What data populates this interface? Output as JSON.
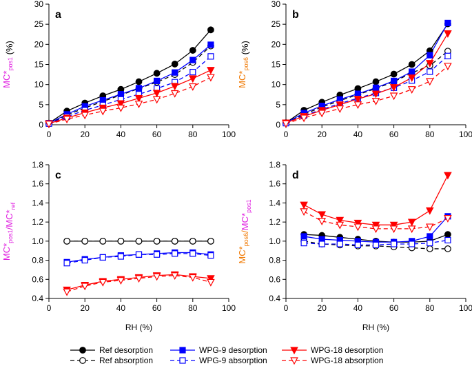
{
  "chart_data": [
    {
      "type": "line",
      "panel": "a",
      "ylabel": {
        "parts": [
          {
            "text": "MC*",
            "sub": "pos1",
            "color": "#e020e0"
          }
        ],
        "suffix": " (%)"
      },
      "xlabel": "",
      "xlim": [
        0,
        100
      ],
      "ylim": [
        0,
        30
      ],
      "xticks": [
        "0",
        "20",
        "40",
        "60",
        "80",
        "100"
      ],
      "yticks": [
        "0",
        "5",
        "10",
        "15",
        "20",
        "25",
        "30"
      ],
      "x": [
        0,
        10,
        20,
        30,
        40,
        50,
        60,
        70,
        80,
        90
      ],
      "series": [
        {
          "name": "Ref desorption",
          "values": [
            0.4,
            3.4,
            5.4,
            7.2,
            8.8,
            10.7,
            12.8,
            15.1,
            18.5,
            23.6
          ]
        },
        {
          "name": "Ref absorption",
          "values": [
            0.3,
            2.4,
            4.2,
            5.8,
            7.4,
            9.0,
            10.6,
            12.5,
            15.5,
            19.6
          ]
        },
        {
          "name": "WPG-9 desorption",
          "values": [
            0.4,
            2.6,
            4.6,
            6.1,
            7.6,
            9.1,
            10.9,
            13.0,
            16.1,
            19.9
          ]
        },
        {
          "name": "WPG-9 absorption",
          "values": [
            0.3,
            2.0,
            3.6,
            4.9,
            6.3,
            7.6,
            9.0,
            10.6,
            13.1,
            17.0
          ]
        },
        {
          "name": "WPG-18 desorption",
          "values": [
            0.3,
            1.7,
            3.0,
            4.2,
            5.3,
            6.6,
            7.9,
            9.6,
            11.5,
            13.6
          ]
        },
        {
          "name": "WPG-18 absorption",
          "values": [
            0.2,
            1.4,
            2.4,
            3.4,
            4.2,
            5.2,
            6.3,
            7.8,
            9.5,
            11.8
          ]
        }
      ]
    },
    {
      "type": "line",
      "panel": "b",
      "ylabel": {
        "parts": [
          {
            "text": "MC*",
            "sub": "pos6",
            "color": "#f07800"
          }
        ],
        "suffix": " (%)"
      },
      "xlabel": "",
      "xlim": [
        0,
        100
      ],
      "ylim": [
        0,
        30
      ],
      "xticks": [
        "0",
        "20",
        "40",
        "60",
        "80",
        "100"
      ],
      "yticks": [
        "0",
        "5",
        "10",
        "15",
        "20",
        "25",
        "30"
      ],
      "x": [
        0,
        10,
        20,
        30,
        40,
        50,
        60,
        70,
        80,
        90
      ],
      "series": [
        {
          "name": "Ref desorption",
          "values": [
            0.5,
            3.6,
            5.6,
            7.4,
            9.0,
            10.7,
            12.6,
            15.0,
            18.4,
            25.1
          ]
        },
        {
          "name": "Ref absorption",
          "values": [
            0.4,
            2.6,
            4.4,
            6.0,
            7.5,
            9.0,
            10.7,
            12.9,
            14.7,
            18.3
          ]
        },
        {
          "name": "WPG-9 desorption",
          "values": [
            0.5,
            2.9,
            4.7,
            6.3,
            7.7,
            9.2,
            10.9,
            13.2,
            17.3,
            25.3
          ]
        },
        {
          "name": "WPG-9 absorption",
          "values": [
            0.4,
            2.3,
            3.8,
            5.3,
            6.6,
            7.9,
            9.2,
            11.0,
            13.2,
            17.1
          ]
        },
        {
          "name": "WPG-18 desorption",
          "values": [
            0.5,
            2.1,
            3.6,
            5.0,
            6.4,
            7.7,
            9.3,
            11.7,
            15.3,
            22.7
          ]
        },
        {
          "name": "WPG-18 absorption",
          "values": [
            0.3,
            1.7,
            2.9,
            4.0,
            5.0,
            5.9,
            7.2,
            8.8,
            10.8,
            14.6
          ]
        }
      ]
    },
    {
      "type": "line",
      "panel": "c",
      "ylabel": {
        "parts": [
          {
            "text": "MC*",
            "sub": "pos1",
            "color": "#e020e0"
          },
          {
            "text": "/",
            "sub": "",
            "color": "#e020e0"
          },
          {
            "text": "MC*",
            "sub": "ref",
            "color": "#e020e0"
          }
        ],
        "suffix": ""
      },
      "xlabel": "RH (%)",
      "xlim": [
        0,
        100
      ],
      "ylim": [
        0.4,
        1.8
      ],
      "xticks": [
        "0",
        "20",
        "40",
        "60",
        "80",
        "100"
      ],
      "yticks": [
        "0.4",
        "0.6",
        "0.8",
        "1.0",
        "1.2",
        "1.4",
        "1.6",
        "1.8"
      ],
      "x": [
        10,
        20,
        30,
        40,
        50,
        60,
        70,
        80,
        90
      ],
      "series": [
        {
          "name": "Ref desorption",
          "values": [
            1.0,
            1.0,
            1.0,
            1.0,
            1.0,
            1.0,
            1.0,
            1.0,
            1.0
          ]
        },
        {
          "name": "Ref absorption",
          "values": [
            1.0,
            1.0,
            1.0,
            1.0,
            1.0,
            1.0,
            1.0,
            1.0,
            1.0
          ]
        },
        {
          "name": "WPG-9 desorption",
          "values": [
            0.78,
            0.81,
            0.83,
            0.85,
            0.86,
            0.87,
            0.88,
            0.88,
            0.86
          ]
        },
        {
          "name": "WPG-9 absorption",
          "values": [
            0.77,
            0.8,
            0.83,
            0.84,
            0.86,
            0.86,
            0.87,
            0.87,
            0.85
          ]
        },
        {
          "name": "WPG-18 desorption",
          "values": [
            0.49,
            0.54,
            0.58,
            0.6,
            0.62,
            0.64,
            0.65,
            0.63,
            0.61
          ]
        },
        {
          "name": "WPG-18 absorption",
          "values": [
            0.47,
            0.53,
            0.57,
            0.59,
            0.61,
            0.63,
            0.64,
            0.62,
            0.57
          ]
        }
      ]
    },
    {
      "type": "line",
      "panel": "d",
      "ylabel": {
        "parts": [
          {
            "text": "MC*",
            "sub": "pos6",
            "color": "#f07800"
          },
          {
            "text": "/",
            "sub": "",
            "color": "#f07800"
          },
          {
            "text": "MC*",
            "sub": "pos1",
            "color": "#e020e0"
          }
        ],
        "suffix": ""
      },
      "xlabel": "RH (%)",
      "xlim": [
        0,
        100
      ],
      "ylim": [
        0.4,
        1.8
      ],
      "xticks": [
        "0",
        "20",
        "40",
        "60",
        "80",
        "100"
      ],
      "yticks": [
        "0.4",
        "0.6",
        "0.8",
        "1.0",
        "1.2",
        "1.4",
        "1.6",
        "1.8"
      ],
      "x": [
        10,
        20,
        30,
        40,
        50,
        60,
        70,
        80,
        90
      ],
      "series": [
        {
          "name": "Ref desorption",
          "values": [
            1.07,
            1.06,
            1.04,
            1.02,
            1.0,
            0.99,
            0.99,
            1.0,
            1.07
          ]
        },
        {
          "name": "Ref absorption",
          "values": [
            1.0,
            0.97,
            0.96,
            0.95,
            0.95,
            0.94,
            0.93,
            0.92,
            0.92
          ]
        },
        {
          "name": "WPG-9 desorption",
          "values": [
            1.05,
            1.02,
            1.01,
            1.0,
            0.99,
            0.99,
            1.0,
            1.05,
            1.26
          ]
        },
        {
          "name": "WPG-9 absorption",
          "values": [
            0.98,
            0.97,
            0.97,
            0.96,
            0.96,
            0.97,
            0.97,
            0.98,
            1.01
          ]
        },
        {
          "name": "WPG-18 desorption",
          "values": [
            1.38,
            1.28,
            1.22,
            1.19,
            1.17,
            1.17,
            1.2,
            1.32,
            1.69
          ]
        },
        {
          "name": "WPG-18 absorption",
          "values": [
            1.31,
            1.21,
            1.17,
            1.15,
            1.13,
            1.13,
            1.13,
            1.15,
            1.24
          ]
        }
      ]
    }
  ],
  "legend": [
    {
      "name": "Ref desorption",
      "color": "#000000",
      "marker": "circle",
      "filled": true,
      "dashed": false
    },
    {
      "name": "WPG-9 desorption",
      "color": "#0000ff",
      "marker": "square",
      "filled": true,
      "dashed": false
    },
    {
      "name": "WPG-18 desorption",
      "color": "#ff0000",
      "marker": "triangle",
      "filled": true,
      "dashed": false
    },
    {
      "name": "Ref absorption",
      "color": "#000000",
      "marker": "circle",
      "filled": false,
      "dashed": true
    },
    {
      "name": "WPG-9 absorption",
      "color": "#0000ff",
      "marker": "square",
      "filled": false,
      "dashed": true
    },
    {
      "name": "WPG-18 absorption",
      "color": "#ff0000",
      "marker": "triangle",
      "filled": false,
      "dashed": true
    }
  ],
  "series_style": {
    "Ref desorption": {
      "color": "#000000",
      "marker": "circle",
      "filled": true,
      "dashed": false
    },
    "Ref absorption": {
      "color": "#000000",
      "marker": "circle",
      "filled": false,
      "dashed": true
    },
    "WPG-9 desorption": {
      "color": "#0000ff",
      "marker": "square",
      "filled": true,
      "dashed": false
    },
    "WPG-9 absorption": {
      "color": "#0000ff",
      "marker": "square",
      "filled": false,
      "dashed": true
    },
    "WPG-18 desorption": {
      "color": "#ff0000",
      "marker": "triangle",
      "filled": true,
      "dashed": false
    },
    "WPG-18 absorption": {
      "color": "#ff0000",
      "marker": "triangle",
      "filled": false,
      "dashed": true
    }
  }
}
